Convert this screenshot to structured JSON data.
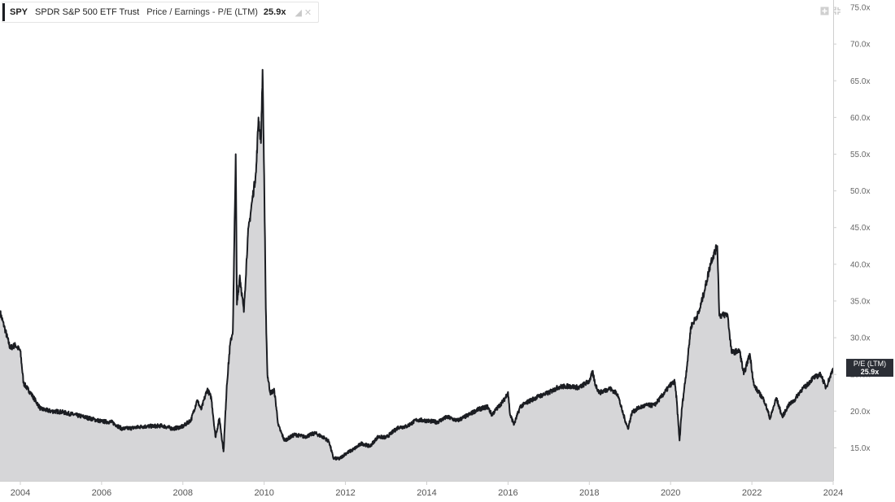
{
  "legend": {
    "ticker": "SPY",
    "name": "SPDR S&P 500 ETF Trust",
    "metric": "Price / Earnings - P/E (LTM)",
    "value": "25.9x",
    "icons": [
      "paint-bucket-icon",
      "close-icon"
    ]
  },
  "controls": {
    "icons": [
      "add-icon",
      "collapse-icon"
    ]
  },
  "colors": {
    "line": "#1b1d22",
    "area": "#d6d6d8",
    "badge_bg": "#2b2e35",
    "badge_text": "#ffffff",
    "axis": "#cfcfcf"
  },
  "chart_data": {
    "type": "area",
    "title": "",
    "xlabel": "",
    "ylabel": "",
    "series": [
      {
        "name": "P/E (LTM)",
        "points": [
          [
            2003.5,
            33.5
          ],
          [
            2003.62,
            31.2
          ],
          [
            2003.75,
            28.6
          ],
          [
            2003.88,
            29.0
          ],
          [
            2004.0,
            28.2
          ],
          [
            2004.08,
            23.8
          ],
          [
            2004.25,
            22.5
          ],
          [
            2004.5,
            20.3
          ],
          [
            2004.75,
            20.0
          ],
          [
            2005.0,
            19.9
          ],
          [
            2005.5,
            19.3
          ],
          [
            2006.0,
            18.6
          ],
          [
            2006.25,
            18.5
          ],
          [
            2006.5,
            17.6
          ],
          [
            2006.75,
            17.7
          ],
          [
            2007.0,
            17.9
          ],
          [
            2007.5,
            18.0
          ],
          [
            2007.75,
            17.6
          ],
          [
            2008.0,
            17.9
          ],
          [
            2008.2,
            18.8
          ],
          [
            2008.35,
            21.5
          ],
          [
            2008.45,
            20.2
          ],
          [
            2008.6,
            23.0
          ],
          [
            2008.7,
            21.8
          ],
          [
            2008.8,
            16.5
          ],
          [
            2008.9,
            19.0
          ],
          [
            2009.0,
            14.5
          ],
          [
            2009.08,
            23.5
          ],
          [
            2009.16,
            29.0
          ],
          [
            2009.23,
            31.0
          ],
          [
            2009.3,
            55.0
          ],
          [
            2009.33,
            34.5
          ],
          [
            2009.4,
            38.5
          ],
          [
            2009.5,
            33.5
          ],
          [
            2009.6,
            44.0
          ],
          [
            2009.7,
            48.5
          ],
          [
            2009.8,
            52.5
          ],
          [
            2009.86,
            60.0
          ],
          [
            2009.92,
            56.5
          ],
          [
            2009.96,
            66.5
          ],
          [
            2010.0,
            52.0
          ],
          [
            2010.04,
            34.0
          ],
          [
            2010.08,
            25.0
          ],
          [
            2010.15,
            22.5
          ],
          [
            2010.25,
            22.8
          ],
          [
            2010.35,
            18.0
          ],
          [
            2010.5,
            16.0
          ],
          [
            2010.75,
            16.8
          ],
          [
            2011.0,
            16.5
          ],
          [
            2011.25,
            17.0
          ],
          [
            2011.5,
            16.3
          ],
          [
            2011.6,
            15.8
          ],
          [
            2011.7,
            13.6
          ],
          [
            2011.85,
            13.5
          ],
          [
            2012.0,
            14.2
          ],
          [
            2012.2,
            14.8
          ],
          [
            2012.4,
            15.6
          ],
          [
            2012.6,
            15.2
          ],
          [
            2012.8,
            16.5
          ],
          [
            2013.0,
            16.4
          ],
          [
            2013.3,
            17.8
          ],
          [
            2013.5,
            17.9
          ],
          [
            2013.75,
            18.8
          ],
          [
            2014.0,
            18.7
          ],
          [
            2014.25,
            18.5
          ],
          [
            2014.5,
            19.2
          ],
          [
            2014.75,
            18.7
          ],
          [
            2015.0,
            19.4
          ],
          [
            2015.25,
            20.2
          ],
          [
            2015.5,
            20.6
          ],
          [
            2015.6,
            19.5
          ],
          [
            2015.75,
            20.5
          ],
          [
            2015.9,
            21.5
          ],
          [
            2016.0,
            22.6
          ],
          [
            2016.05,
            19.5
          ],
          [
            2016.15,
            18.2
          ],
          [
            2016.3,
            20.6
          ],
          [
            2016.5,
            21.3
          ],
          [
            2016.75,
            22.0
          ],
          [
            2017.0,
            22.5
          ],
          [
            2017.25,
            23.3
          ],
          [
            2017.5,
            23.4
          ],
          [
            2017.75,
            23.2
          ],
          [
            2018.0,
            24.1
          ],
          [
            2018.08,
            25.3
          ],
          [
            2018.15,
            23.6
          ],
          [
            2018.25,
            22.5
          ],
          [
            2018.5,
            23.1
          ],
          [
            2018.7,
            22.3
          ],
          [
            2018.8,
            20.2
          ],
          [
            2018.95,
            17.6
          ],
          [
            2019.05,
            19.8
          ],
          [
            2019.2,
            20.4
          ],
          [
            2019.4,
            20.8
          ],
          [
            2019.6,
            20.8
          ],
          [
            2019.75,
            21.8
          ],
          [
            2020.0,
            23.6
          ],
          [
            2020.1,
            24.0
          ],
          [
            2020.15,
            21.5
          ],
          [
            2020.22,
            16.0
          ],
          [
            2020.28,
            20.5
          ],
          [
            2020.4,
            26.0
          ],
          [
            2020.5,
            31.5
          ],
          [
            2020.7,
            33.5
          ],
          [
            2020.85,
            36.8
          ],
          [
            2021.0,
            40.5
          ],
          [
            2021.15,
            42.5
          ],
          [
            2021.2,
            33.0
          ],
          [
            2021.4,
            33.2
          ],
          [
            2021.5,
            28.0
          ],
          [
            2021.7,
            28.2
          ],
          [
            2021.8,
            25.0
          ],
          [
            2021.95,
            27.8
          ],
          [
            2022.05,
            23.5
          ],
          [
            2022.3,
            21.5
          ],
          [
            2022.45,
            19.0
          ],
          [
            2022.6,
            21.8
          ],
          [
            2022.75,
            19.2
          ],
          [
            2022.9,
            20.8
          ],
          [
            2023.05,
            21.5
          ],
          [
            2023.2,
            22.8
          ],
          [
            2023.35,
            23.5
          ],
          [
            2023.5,
            24.5
          ],
          [
            2023.7,
            25.0
          ],
          [
            2023.82,
            23.2
          ],
          [
            2023.92,
            24.6
          ],
          [
            2024.0,
            25.9
          ]
        ]
      }
    ],
    "xlim": [
      2003.5,
      2024.0
    ],
    "ylim": [
      10.5,
      76.0
    ],
    "x_ticks": [
      2004,
      2006,
      2008,
      2010,
      2012,
      2014,
      2016,
      2018,
      2020,
      2022,
      2024
    ],
    "x_tick_labels": [
      "2004",
      "2006",
      "2008",
      "2010",
      "2012",
      "2014",
      "2016",
      "2018",
      "2020",
      "2022",
      "2024"
    ],
    "y_ticks": [
      15,
      20,
      25,
      30,
      35,
      40,
      45,
      50,
      55,
      60,
      65,
      70,
      75
    ],
    "y_tick_labels": [
      "15.0x",
      "20.0x",
      "25.0x",
      "30.0x",
      "35.0x",
      "40.0x",
      "45.0x",
      "50.0x",
      "55.0x",
      "60.0x",
      "65.0x",
      "70.0x",
      "75.0x"
    ],
    "badge": {
      "label": "P/E (LTM)",
      "value": "25.9x",
      "y": 25.9
    },
    "grid": false,
    "y_axis_side": "right"
  }
}
